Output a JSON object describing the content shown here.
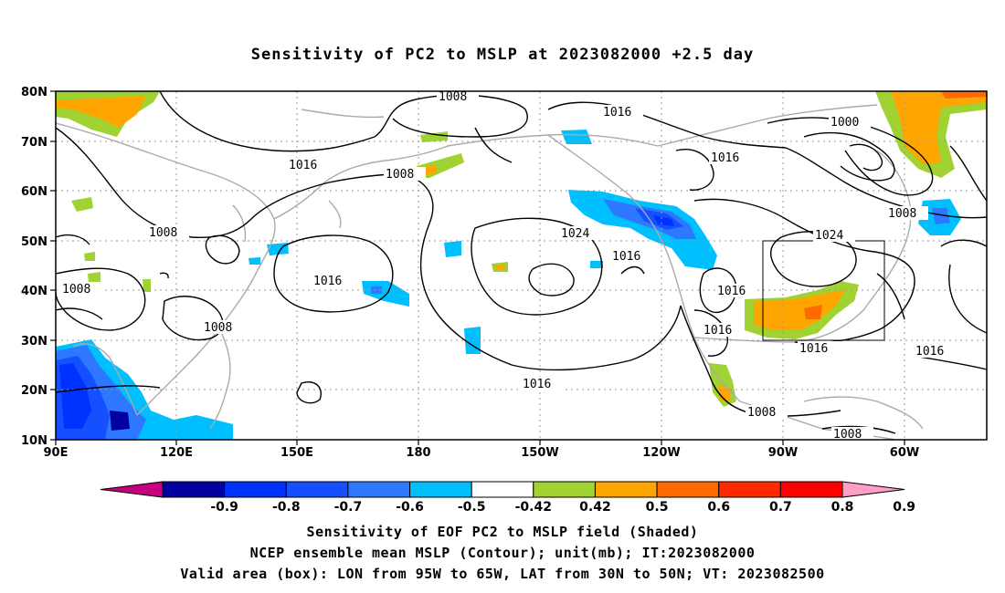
{
  "title": "Sensitivity of PC2 to MSLP at 2023082000 +2.5 day",
  "map": {
    "lat_labels": [
      "80N",
      "70N",
      "60N",
      "50N",
      "40N",
      "30N",
      "20N",
      "10N"
    ],
    "lon_labels": [
      "90E",
      "120E",
      "150E",
      "180",
      "150W",
      "120W",
      "90W",
      "60W"
    ],
    "contour_labels": [
      "1008",
      "1016",
      "1000",
      "1016",
      "1016",
      "1008",
      "1008",
      "1008",
      "1024",
      "1016",
      "1024",
      "1016",
      "1016",
      "1008",
      "1016",
      "1008",
      "1016",
      "1016",
      "1008"
    ],
    "land_color": "#aaaaaa",
    "contour_color": "#000000",
    "box": {
      "lon_from": "95W",
      "lon_to": "65W",
      "lat_from": "30N",
      "lat_to": "50N"
    }
  },
  "colorbar": {
    "tick_labels": [
      "-0.9",
      "-0.8",
      "-0.7",
      "-0.6",
      "-0.5",
      "-0.42",
      "0.42",
      "0.5",
      "0.6",
      "0.7",
      "0.8",
      "0.9"
    ],
    "colors": [
      "#c8007f",
      "#0000a0",
      "#0032ff",
      "#1450ff",
      "#2d78ff",
      "#00bfff",
      "#ffffff",
      "#a0d232",
      "#ffa500",
      "#ff6a00",
      "#ff2a00",
      "#ff0000",
      "#ff9fc8"
    ]
  },
  "captions": [
    "Sensitivity of EOF PC2 to MSLP field (Shaded)",
    "NCEP ensemble mean MSLP (Contour); unit(mb); IT:2023082000",
    "Valid area (box): LON from 95W to 65W, LAT from 30N to 50N; VT: 2023082500"
  ]
}
